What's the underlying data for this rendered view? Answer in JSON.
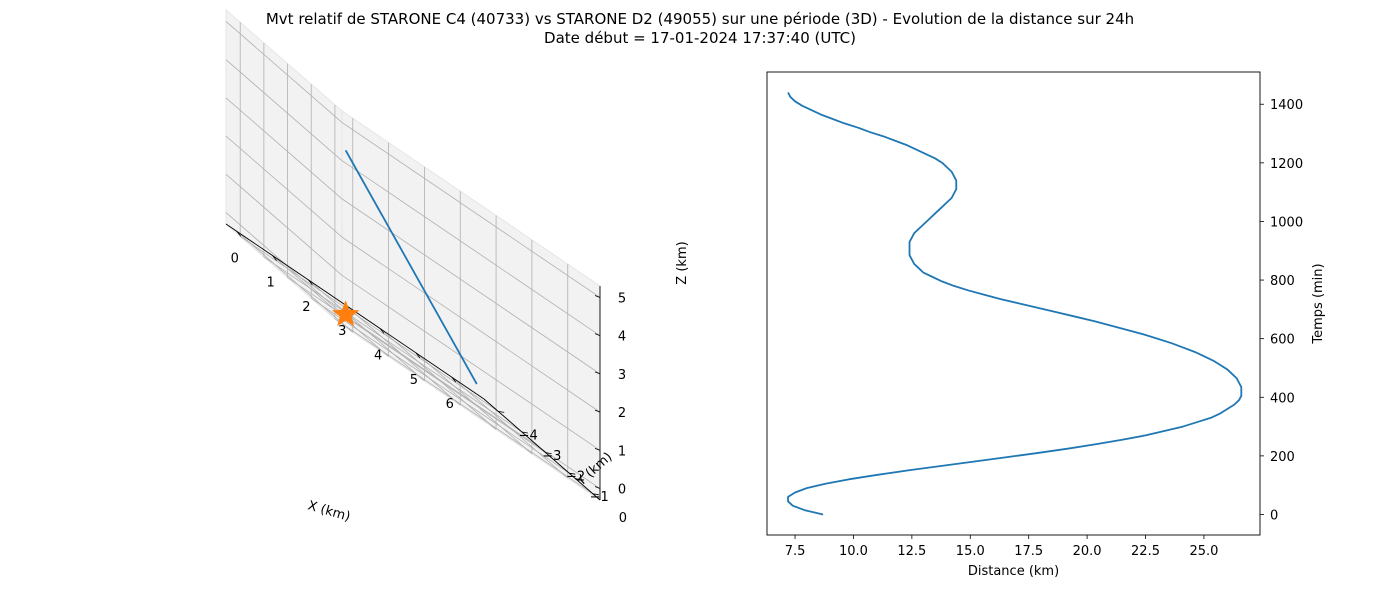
{
  "title": {
    "line1": "Mvt relatif de STARONE C4 (40733) vs STARONE D2 (49055) sur une période (3D) - Evolution de la distance sur 24h",
    "line2": "Date début = 17-01-2024 17:37:40 (UTC)"
  },
  "colors": {
    "trajectory": "#1f77b4",
    "star": "#ff7f0e",
    "pane": "#f2f2f2",
    "grid": "#b0b0b0"
  },
  "chart_data": [
    {
      "type": "line3d",
      "xlabel": "X (km)",
      "ylabel": "Y (km)",
      "zlabel": "Z (km)",
      "xlim": [
        -0.3,
        6.9
      ],
      "ylim": [
        -4.6,
        0.3
      ],
      "zlim": [
        -0.3,
        5.3
      ],
      "xticks": [
        "0",
        "1",
        "2",
        "3",
        "4",
        "5",
        "6"
      ],
      "yticks": [
        "0",
        "−1",
        "−2",
        "−3",
        "−4"
      ],
      "zticks": [
        "0",
        "1",
        "2",
        "3",
        "4",
        "5"
      ],
      "series": [
        {
          "points": [
            [
              6.5,
              -4.3,
              0.0
            ],
            [
              0.0,
              0.0,
              4.3
            ]
          ]
        }
      ],
      "markers": [
        {
          "shape": "star",
          "point": [
            0,
            0,
            0
          ]
        }
      ]
    },
    {
      "type": "line",
      "xlabel": "Distance (km)",
      "ylabel": "Temps (min)",
      "xlim": [
        6.3,
        27.4
      ],
      "ylim": [
        -70,
        1510
      ],
      "xticks": [
        "7.5",
        "10.0",
        "12.5",
        "15.0",
        "17.5",
        "20.0",
        "22.5",
        "25.0"
      ],
      "yticks": [
        "0",
        "200",
        "400",
        "600",
        "800",
        "1000",
        "1200",
        "1400"
      ],
      "series": [
        {
          "t": [
            0,
            15,
            30,
            45,
            60,
            75,
            90,
            105,
            120,
            135,
            150,
            165,
            180,
            195,
            210,
            225,
            240,
            255,
            270,
            285,
            300,
            315,
            330,
            345,
            360,
            375,
            390,
            405,
            420,
            435,
            450,
            465,
            480,
            495,
            510,
            525,
            540,
            555,
            570,
            585,
            600,
            615,
            630,
            645,
            660,
            675,
            690,
            705,
            720,
            735,
            750,
            765,
            780,
            795,
            810,
            825,
            840,
            855,
            870,
            885,
            900,
            915,
            930,
            945,
            960,
            975,
            990,
            1005,
            1020,
            1035,
            1050,
            1065,
            1080,
            1095,
            1110,
            1125,
            1140,
            1155,
            1170,
            1185,
            1200,
            1215,
            1230,
            1245,
            1260,
            1275,
            1290,
            1305,
            1320,
            1335,
            1350,
            1365,
            1380,
            1395,
            1410,
            1425,
            1440
          ],
          "distance": [
            8.7,
            7.9,
            7.4,
            7.2,
            7.2,
            7.5,
            8.0,
            8.8,
            9.8,
            11.0,
            12.3,
            13.7,
            15.1,
            16.5,
            17.9,
            19.2,
            20.4,
            21.5,
            22.5,
            23.3,
            24.1,
            24.7,
            25.3,
            25.7,
            26.0,
            26.3,
            26.5,
            26.6,
            26.6,
            26.6,
            26.5,
            26.4,
            26.2,
            26.0,
            25.7,
            25.4,
            25.0,
            24.6,
            24.1,
            23.6,
            23.0,
            22.4,
            21.7,
            21.0,
            20.3,
            19.5,
            18.7,
            17.9,
            17.1,
            16.3,
            15.6,
            14.9,
            14.3,
            13.8,
            13.4,
            13.0,
            12.8,
            12.6,
            12.5,
            12.4,
            12.4,
            12.4,
            12.4,
            12.5,
            12.6,
            12.8,
            13.0,
            13.2,
            13.4,
            13.6,
            13.8,
            14.0,
            14.2,
            14.3,
            14.4,
            14.4,
            14.4,
            14.3,
            14.2,
            14.0,
            13.8,
            13.5,
            13.1,
            12.7,
            12.3,
            11.8,
            11.3,
            10.7,
            10.2,
            9.6,
            9.1,
            8.6,
            8.2,
            7.8,
            7.5,
            7.3,
            7.2
          ]
        }
      ]
    }
  ]
}
